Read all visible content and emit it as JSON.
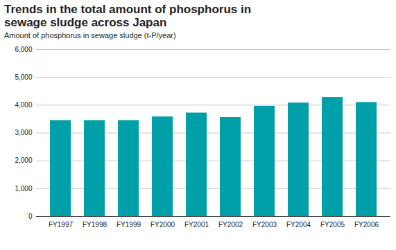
{
  "chart_data": {
    "type": "bar",
    "title": "Trends in the total amount of phosphorus in sewage sludge across Japan",
    "subtitle": "Amount of phosphorus in sewage sludge (t-P/year)",
    "categories": [
      "FY1997",
      "FY1998",
      "FY1999",
      "FY2000",
      "FY2001",
      "FY2002",
      "FY2003",
      "FY2004",
      "FY2005",
      "FY2006"
    ],
    "values": [
      3450,
      3450,
      3450,
      3580,
      3720,
      3560,
      3960,
      4080,
      4280,
      4100
    ],
    "color": "#00a0a8",
    "ylim": [
      0,
      6000
    ],
    "yticks": [
      0,
      {
        "value": 1000,
        "label": "1,000"
      },
      {
        "value": 2000,
        "label": "2,000"
      },
      {
        "value": 3000,
        "label": "3,000"
      },
      {
        "value": 4000,
        "label": "4,000"
      },
      {
        "value": 5000,
        "label": "5,000"
      },
      {
        "value": 6000,
        "label": "6,000"
      }
    ],
    "grid": true
  }
}
